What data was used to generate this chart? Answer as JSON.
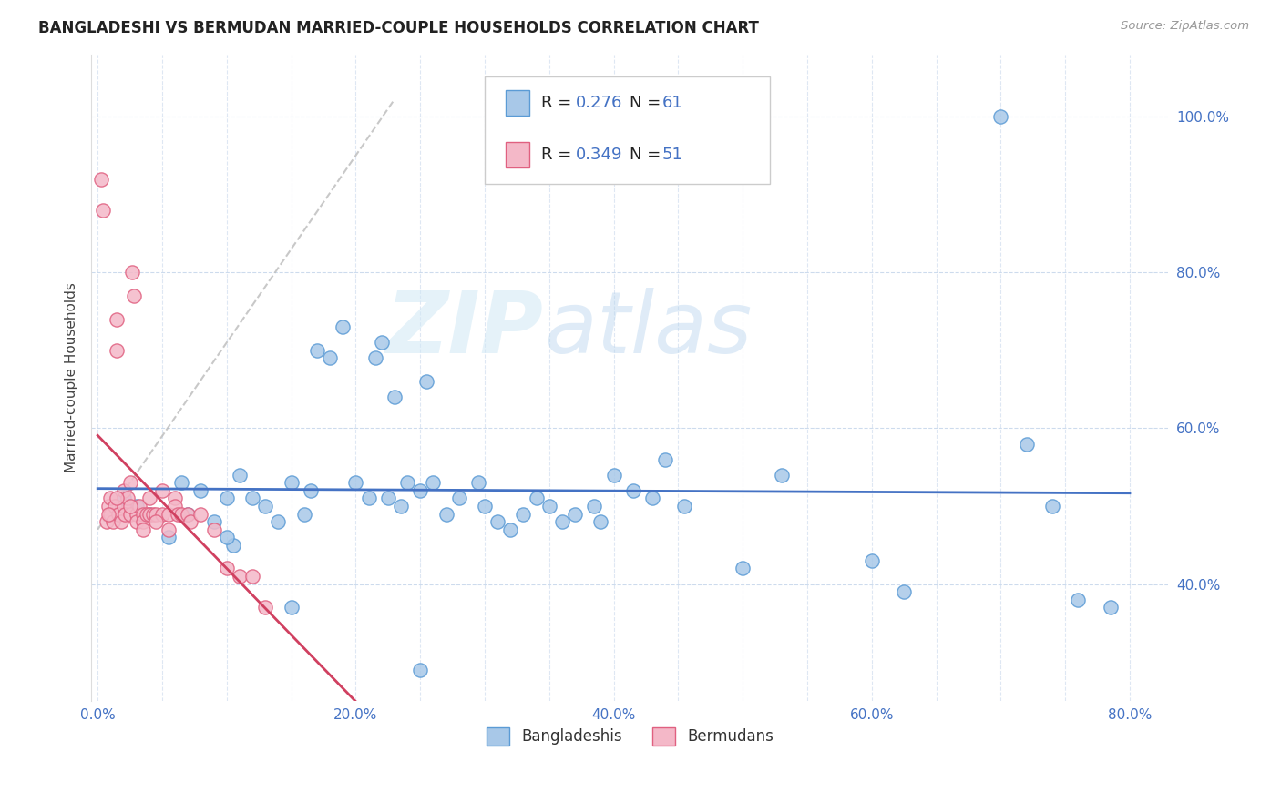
{
  "title": "BANGLADESHI VS BERMUDAN MARRIED-COUPLE HOUSEHOLDS CORRELATION CHART",
  "source": "Source: ZipAtlas.com",
  "ylabel": "Married-couple Households",
  "legend_label1": "Bangladeshis",
  "legend_label2": "Bermudans",
  "R1": 0.276,
  "N1": 61,
  "R2": 0.349,
  "N2": 51,
  "xlim": [
    -0.005,
    0.83
  ],
  "ylim": [
    0.25,
    1.08
  ],
  "xtick_labels": [
    "0.0%",
    "",
    "",
    "",
    "20.0%",
    "",
    "",
    "",
    "40.0%",
    "",
    "",
    "",
    "60.0%",
    "",
    "",
    "",
    "80.0%"
  ],
  "xtick_vals": [
    0.0,
    0.05,
    0.1,
    0.15,
    0.2,
    0.25,
    0.3,
    0.35,
    0.4,
    0.45,
    0.5,
    0.55,
    0.6,
    0.65,
    0.7,
    0.75,
    0.8
  ],
  "ytick_labels": [
    "40.0%",
    "60.0%",
    "80.0%",
    "100.0%"
  ],
  "ytick_vals": [
    0.4,
    0.6,
    0.8,
    1.0
  ],
  "color_blue_fill": "#a8c8e8",
  "color_blue_edge": "#5b9bd5",
  "color_pink_fill": "#f4b8c8",
  "color_pink_edge": "#e06080",
  "color_blue_line": "#4472c4",
  "color_pink_line": "#d04060",
  "color_ref_line": "#bbbbbb",
  "watermark_color": "#c8dff0",
  "blue_x": [
    0.02,
    0.03,
    0.04,
    0.055,
    0.065,
    0.07,
    0.08,
    0.09,
    0.1,
    0.105,
    0.11,
    0.12,
    0.13,
    0.14,
    0.15,
    0.16,
    0.165,
    0.17,
    0.18,
    0.19,
    0.2,
    0.21,
    0.215,
    0.22,
    0.225,
    0.23,
    0.235,
    0.24,
    0.25,
    0.255,
    0.26,
    0.27,
    0.28,
    0.295,
    0.3,
    0.31,
    0.32,
    0.33,
    0.34,
    0.35,
    0.36,
    0.37,
    0.385,
    0.39,
    0.4,
    0.415,
    0.43,
    0.44,
    0.455,
    0.5,
    0.53,
    0.6,
    0.625,
    0.7,
    0.72,
    0.74,
    0.76,
    0.785,
    0.1,
    0.15,
    0.25
  ],
  "blue_y": [
    0.51,
    0.5,
    0.49,
    0.46,
    0.53,
    0.49,
    0.52,
    0.48,
    0.51,
    0.45,
    0.54,
    0.51,
    0.5,
    0.48,
    0.53,
    0.49,
    0.52,
    0.7,
    0.69,
    0.73,
    0.53,
    0.51,
    0.69,
    0.71,
    0.51,
    0.64,
    0.5,
    0.53,
    0.52,
    0.66,
    0.53,
    0.49,
    0.51,
    0.53,
    0.5,
    0.48,
    0.47,
    0.49,
    0.51,
    0.5,
    0.48,
    0.49,
    0.5,
    0.48,
    0.54,
    0.52,
    0.51,
    0.56,
    0.5,
    0.42,
    0.54,
    0.43,
    0.39,
    1.0,
    0.58,
    0.5,
    0.38,
    0.37,
    0.46,
    0.37,
    0.29
  ],
  "pink_x": [
    0.003,
    0.004,
    0.007,
    0.008,
    0.01,
    0.01,
    0.012,
    0.013,
    0.015,
    0.015,
    0.016,
    0.018,
    0.02,
    0.02,
    0.021,
    0.023,
    0.025,
    0.025,
    0.027,
    0.028,
    0.03,
    0.03,
    0.032,
    0.035,
    0.035,
    0.038,
    0.04,
    0.04,
    0.043,
    0.045,
    0.05,
    0.05,
    0.055,
    0.06,
    0.06,
    0.062,
    0.065,
    0.07,
    0.072,
    0.08,
    0.09,
    0.1,
    0.11,
    0.12,
    0.13,
    0.008,
    0.015,
    0.025,
    0.035,
    0.045,
    0.055
  ],
  "pink_y": [
    0.92,
    0.88,
    0.48,
    0.5,
    0.51,
    0.49,
    0.48,
    0.5,
    0.74,
    0.7,
    0.49,
    0.48,
    0.52,
    0.5,
    0.49,
    0.51,
    0.53,
    0.49,
    0.8,
    0.77,
    0.49,
    0.48,
    0.5,
    0.49,
    0.48,
    0.49,
    0.51,
    0.49,
    0.49,
    0.49,
    0.52,
    0.49,
    0.49,
    0.51,
    0.5,
    0.49,
    0.49,
    0.49,
    0.48,
    0.49,
    0.47,
    0.42,
    0.41,
    0.41,
    0.37,
    0.49,
    0.51,
    0.5,
    0.47,
    0.48,
    0.47
  ]
}
